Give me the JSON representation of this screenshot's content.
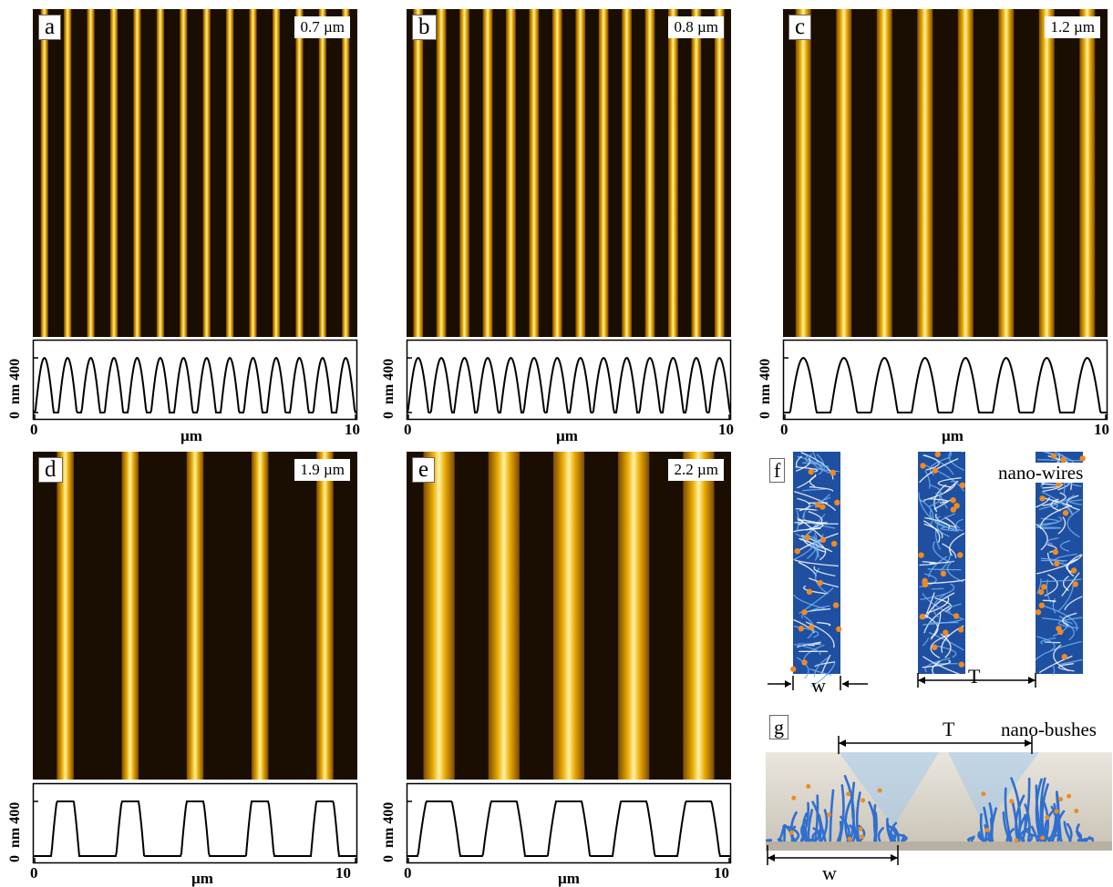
{
  "panels": [
    {
      "id": "a",
      "scale": "0.7 µm",
      "stripes": 14,
      "width": 0.32
    },
    {
      "id": "b",
      "scale": "0.8 µm",
      "stripes": 14,
      "width": 0.42
    },
    {
      "id": "c",
      "scale": "1.2 µm",
      "stripes": 8,
      "width": 0.38
    },
    {
      "id": "d",
      "scale": "1.9 µm",
      "stripes": 5,
      "width": 0.26
    },
    {
      "id": "e",
      "scale": "2.2 µm",
      "stripes": 5,
      "width": 0.48
    }
  ],
  "profile_axis": {
    "ylabel": "nm",
    "ytick": "400",
    "ytick0": "0",
    "xlabel": "µm",
    "xmin": "0",
    "xmax": "10"
  },
  "panel_f": {
    "letter": "f",
    "title": "nano-wires",
    "w_label": "w",
    "t_label": "T"
  },
  "panel_g": {
    "letter": "g",
    "title": "nano-bushes",
    "w_label": "w",
    "t_label": "T"
  },
  "colors": {
    "stripe": "#f5b800",
    "dark": "#1a0d02",
    "wire": "#3a78d0",
    "dot": "#f08a20"
  }
}
